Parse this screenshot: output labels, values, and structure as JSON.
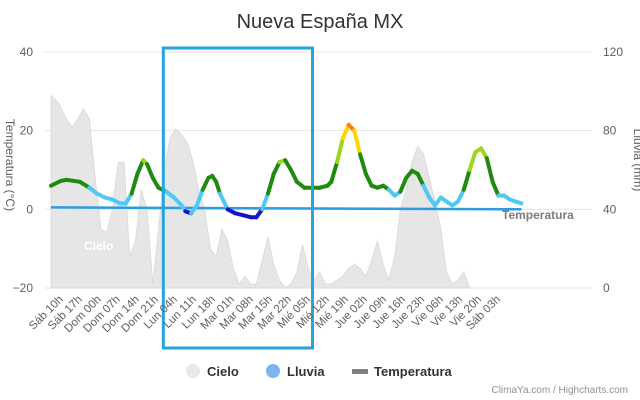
{
  "chart_data": {
    "type": "line",
    "title": "Nueva España MX",
    "y_left_label": "Temperatura (°C)",
    "y_right_label": "Lluvia (mm)",
    "y_left_range": [
      -20,
      40
    ],
    "y_left_ticks": [
      "40",
      "20",
      "0",
      "−20"
    ],
    "y_right_range": [
      0,
      120
    ],
    "y_right_ticks": [
      "120",
      "80",
      "40",
      "0"
    ],
    "grid": true,
    "x_labels": [
      "Sáb 10h",
      "Sáb 17h",
      "Dom 00h",
      "Dom 07h",
      "Dom 14h",
      "Dom 21h",
      "Lun 04h",
      "Lun 11h",
      "Lun 18h",
      "Mar 01h",
      "Mar 08h",
      "Mar 15h",
      "Mar 22h",
      "Mié 05h",
      "Mié 12h",
      "Mié 19h",
      "Jue 02h",
      "Jue 09h",
      "Jue 16h",
      "Jue 23h",
      "Vie 06h",
      "Vie 13h",
      "Vie 20h",
      "Sáb 03h"
    ],
    "series": [
      {
        "name": "Temperatura",
        "axis": "left",
        "points": [
          [
            0,
            6
          ],
          [
            0.5,
            7.2
          ],
          [
            0.8,
            7.5
          ],
          [
            1.5,
            7
          ],
          [
            2,
            5.5
          ],
          [
            2.4,
            4
          ],
          [
            2.8,
            3
          ],
          [
            3.2,
            2.5
          ],
          [
            3.6,
            1.5
          ],
          [
            3.9,
            1.5
          ],
          [
            4.2,
            4
          ],
          [
            4.5,
            9
          ],
          [
            4.8,
            12.5
          ],
          [
            5.0,
            11.5
          ],
          [
            5.3,
            8
          ],
          [
            5.6,
            5.5
          ],
          [
            6.0,
            4.5
          ],
          [
            6.4,
            3
          ],
          [
            6.8,
            1
          ],
          [
            7.0,
            -0.5
          ],
          [
            7.3,
            -1
          ],
          [
            7.6,
            1
          ],
          [
            7.9,
            5
          ],
          [
            8.2,
            8
          ],
          [
            8.4,
            8.5
          ],
          [
            8.6,
            7
          ],
          [
            8.8,
            4
          ],
          [
            9.2,
            0
          ],
          [
            9.6,
            -1
          ],
          [
            10.0,
            -1.5
          ],
          [
            10.4,
            -2
          ],
          [
            10.7,
            -2
          ],
          [
            11.0,
            0
          ],
          [
            11.3,
            4
          ],
          [
            11.6,
            9
          ],
          [
            11.9,
            12
          ],
          [
            12.2,
            12.5
          ],
          [
            12.5,
            10
          ],
          [
            12.8,
            7
          ],
          [
            13.2,
            5.5
          ],
          [
            13.6,
            5.5
          ],
          [
            14.0,
            5.5
          ],
          [
            14.4,
            6
          ],
          [
            14.6,
            7
          ],
          [
            14.9,
            12
          ],
          [
            15.2,
            18
          ],
          [
            15.5,
            21.5
          ],
          [
            15.8,
            20
          ],
          [
            16.1,
            14
          ],
          [
            16.4,
            9
          ],
          [
            16.7,
            6
          ],
          [
            17.0,
            5.5
          ],
          [
            17.3,
            6
          ],
          [
            17.6,
            5
          ],
          [
            17.9,
            3.5
          ],
          [
            18.2,
            4.5
          ],
          [
            18.5,
            8
          ],
          [
            18.8,
            9.8
          ],
          [
            19.1,
            9
          ],
          [
            19.4,
            6
          ],
          [
            19.7,
            3
          ],
          [
            20.0,
            1
          ],
          [
            20.3,
            3
          ],
          [
            20.6,
            2
          ],
          [
            20.9,
            1
          ],
          [
            21.2,
            2
          ],
          [
            21.5,
            5
          ],
          [
            21.8,
            10
          ],
          [
            22.1,
            14.5
          ],
          [
            22.4,
            15.5
          ],
          [
            22.7,
            13
          ],
          [
            23.0,
            7
          ],
          [
            23.3,
            3.5
          ],
          [
            23.6,
            3.5
          ],
          [
            23.9,
            2.5
          ],
          [
            24.2,
            2
          ],
          [
            24.5,
            1.5
          ]
        ]
      },
      {
        "name": "Lluvia",
        "axis": "right",
        "points": [
          [
            0,
            41
          ],
          [
            24.5,
            40
          ]
        ]
      },
      {
        "name": "Cielo",
        "axis": "left",
        "type": "area",
        "points": [
          [
            0,
            29
          ],
          [
            0.4,
            27
          ],
          [
            0.8,
            23
          ],
          [
            1.1,
            21
          ],
          [
            1.4,
            23
          ],
          [
            1.7,
            25.5
          ],
          [
            2.0,
            23
          ],
          [
            2.3,
            8
          ],
          [
            2.6,
            -5
          ],
          [
            2.9,
            -6
          ],
          [
            3.2,
            0
          ],
          [
            3.5,
            12
          ],
          [
            3.8,
            12
          ],
          [
            4.1,
            -12
          ],
          [
            4.4,
            -8
          ],
          [
            4.7,
            5
          ],
          [
            5.0,
            0
          ],
          [
            5.3,
            -19
          ],
          [
            5.6,
            -5
          ],
          [
            5.9,
            10
          ],
          [
            6.2,
            18
          ],
          [
            6.5,
            20.5
          ],
          [
            6.8,
            19
          ],
          [
            7.1,
            17
          ],
          [
            7.4,
            12
          ],
          [
            7.7,
            5
          ],
          [
            8.0,
            0
          ],
          [
            8.3,
            -10
          ],
          [
            8.6,
            -12
          ],
          [
            8.9,
            -5
          ],
          [
            9.2,
            -8
          ],
          [
            9.5,
            -15
          ],
          [
            9.8,
            -19
          ],
          [
            10.1,
            -17
          ],
          [
            10.4,
            -19
          ],
          [
            10.7,
            -19
          ],
          [
            11.0,
            -13
          ],
          [
            11.3,
            -7
          ],
          [
            11.6,
            -14
          ],
          [
            11.9,
            -18
          ],
          [
            12.2,
            -20
          ],
          [
            12.5,
            -19
          ],
          [
            12.8,
            -16
          ],
          [
            13.1,
            -9
          ],
          [
            13.4,
            -15
          ],
          [
            13.7,
            -18
          ],
          [
            14.0,
            -16
          ],
          [
            14.3,
            -19
          ],
          [
            14.6,
            -19
          ],
          [
            14.9,
            -18
          ],
          [
            15.2,
            -17
          ],
          [
            15.5,
            -15
          ],
          [
            15.8,
            -14
          ],
          [
            16.1,
            -15
          ],
          [
            16.4,
            -17
          ],
          [
            16.7,
            -13
          ],
          [
            17.0,
            -8
          ],
          [
            17.3,
            -14
          ],
          [
            17.6,
            -18
          ],
          [
            17.9,
            -12
          ],
          [
            18.2,
            0
          ],
          [
            18.5,
            5
          ],
          [
            18.8,
            12
          ],
          [
            19.1,
            16
          ],
          [
            19.4,
            14
          ],
          [
            19.7,
            8
          ],
          [
            20.0,
            2
          ],
          [
            20.3,
            -5
          ],
          [
            20.6,
            -16
          ],
          [
            20.9,
            -19
          ],
          [
            21.2,
            -18
          ],
          [
            21.5,
            -16
          ],
          [
            21.8,
            -20
          ]
        ]
      }
    ],
    "inline_labels": [
      "Cielo",
      "Temperatura"
    ],
    "legend": {
      "position": "bottom",
      "items": [
        {
          "name": "Cielo",
          "color": "#e8e8e8"
        },
        {
          "name": "Lluvia",
          "color": "#7cb5ec"
        },
        {
          "name": "Temperatura",
          "color": "#808080"
        }
      ]
    },
    "credits": "ClimaYa.com / Highcharts.com",
    "colors": {
      "cielo_fill": "#e6e6e6",
      "lluvia_line": "#2b9be3",
      "highlight_box": "#27a4dc",
      "temp_cold": "#1515c8",
      "temp_cool": "#4ec8f4",
      "temp_mild": "#1f8a0f",
      "temp_warm": "#9ed51f",
      "temp_hot": "#ffd400",
      "temp_very_hot": "#ff7f1f"
    }
  }
}
